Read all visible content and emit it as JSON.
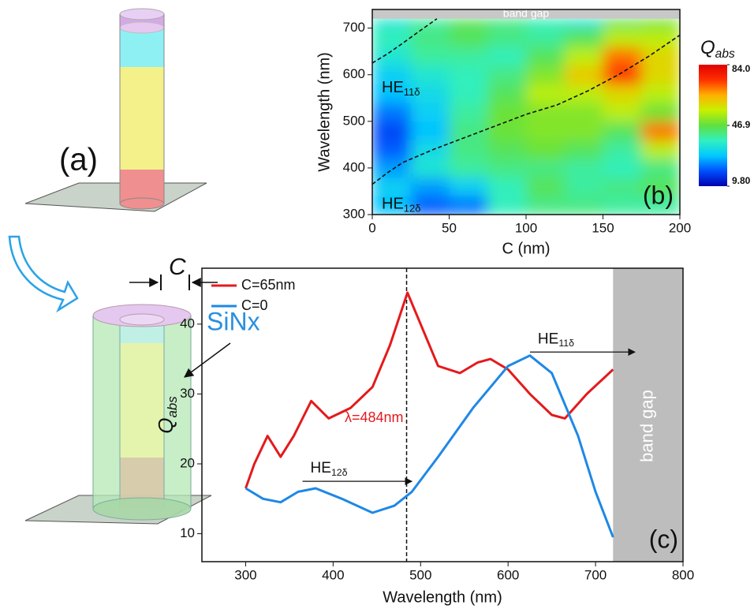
{
  "panel_a": {
    "label": "(a)",
    "dimension": "C",
    "material": "SiNx"
  },
  "chart_data": [
    {
      "type": "heatmap",
      "panel_label": "(b)",
      "xlabel": "C (nm)",
      "ylabel": "Wavelength (nm)",
      "x_edges": [
        0,
        25,
        50,
        75,
        100,
        125,
        150,
        175,
        200
      ],
      "y_edges": [
        300,
        340,
        380,
        420,
        460,
        500,
        540,
        580,
        620,
        660,
        700,
        720
      ],
      "z": [
        [
          28,
          20,
          22,
          38,
          42,
          42,
          40,
          40
        ],
        [
          30,
          25,
          30,
          38,
          45,
          40,
          42,
          45
        ],
        [
          25,
          35,
          40,
          42,
          42,
          40,
          38,
          42
        ],
        [
          20,
          32,
          42,
          45,
          48,
          45,
          40,
          55
        ],
        [
          18,
          28,
          42,
          48,
          50,
          50,
          45,
          70
        ],
        [
          22,
          30,
          40,
          48,
          50,
          50,
          55,
          48
        ],
        [
          28,
          32,
          38,
          45,
          55,
          55,
          60,
          55
        ],
        [
          30,
          35,
          38,
          42,
          50,
          62,
          75,
          60
        ],
        [
          35,
          40,
          40,
          38,
          45,
          55,
          70,
          60
        ],
        [
          38,
          42,
          45,
          42,
          40,
          45,
          55,
          55
        ],
        [
          35,
          40,
          45,
          42,
          38,
          35,
          45,
          48
        ]
      ],
      "xlim": [
        0,
        200
      ],
      "xticks": [
        0,
        50,
        100,
        150,
        200
      ],
      "ylim": [
        300,
        740
      ],
      "yticks": [
        300,
        400,
        500,
        600,
        700
      ],
      "band_gap": {
        "from": 720,
        "label": "band gap"
      },
      "colorbar": {
        "title": [
          "Q",
          "abs"
        ],
        "lim": [
          9.8,
          84
        ],
        "ticks": [
          {
            "value": 84,
            "label": "84.0"
          },
          46.9,
          {
            "value": 9.8,
            "label": "9.80"
          }
        ],
        "colors": [
          "#0000b0",
          "#0050ff",
          "#00c8ff",
          "#30f0c0",
          "#60e040",
          "#c8f000",
          "#ffb000",
          "#ff3000",
          "#e00000"
        ]
      },
      "curves": [
        {
          "label": [
            "HE",
            "11δ"
          ],
          "x": [
            0,
            10,
            20,
            30,
            42
          ],
          "y": [
            625,
            645,
            668,
            692,
            720
          ]
        },
        {
          "label": [
            "HE",
            "12δ"
          ],
          "x": [
            0,
            10,
            20,
            40,
            60,
            80,
            100,
            120,
            140,
            160,
            180,
            200
          ],
          "y": [
            365,
            390,
            412,
            440,
            465,
            490,
            515,
            535,
            565,
            600,
            640,
            685
          ]
        }
      ]
    },
    {
      "type": "line",
      "panel_label": "(c)",
      "xlabel": "Wavelength (nm)",
      "ylabel": [
        "Q",
        "abs"
      ],
      "xlim": [
        250,
        800
      ],
      "xticks": [
        300,
        400,
        500,
        600,
        700,
        800
      ],
      "ylim": [
        6,
        48
      ],
      "yticks": [
        10,
        20,
        30,
        40
      ],
      "series": [
        {
          "name": "C=65nm",
          "color": "#e41a1c",
          "x": [
            300,
            310,
            325,
            340,
            355,
            375,
            395,
            420,
            445,
            465,
            485,
            500,
            520,
            545,
            565,
            580,
            600,
            625,
            650,
            665,
            690,
            720
          ],
          "values": [
            16.5,
            20,
            24,
            21,
            24,
            29,
            26.5,
            28,
            31,
            37,
            44.5,
            40,
            34,
            33,
            34.5,
            35,
            33.5,
            30,
            27,
            26.5,
            30,
            33.5
          ]
        },
        {
          "name": "C=0",
          "color": "#1e88e5",
          "x": [
            300,
            320,
            340,
            360,
            380,
            410,
            445,
            470,
            490,
            520,
            560,
            600,
            625,
            650,
            680,
            700,
            720
          ],
          "values": [
            16.5,
            15,
            14.5,
            16,
            16.5,
            15,
            13,
            14,
            16,
            21,
            28,
            34,
            35.5,
            33,
            24,
            16,
            9.5
          ]
        }
      ],
      "marker": {
        "value": 484,
        "label": "λ=484nm"
      },
      "band_gap": {
        "from": 720,
        "label": "band gap"
      },
      "annotations": [
        {
          "label": [
            "HE",
            "12δ"
          ]
        },
        {
          "label": [
            "HE",
            "11δ"
          ]
        }
      ]
    }
  ]
}
